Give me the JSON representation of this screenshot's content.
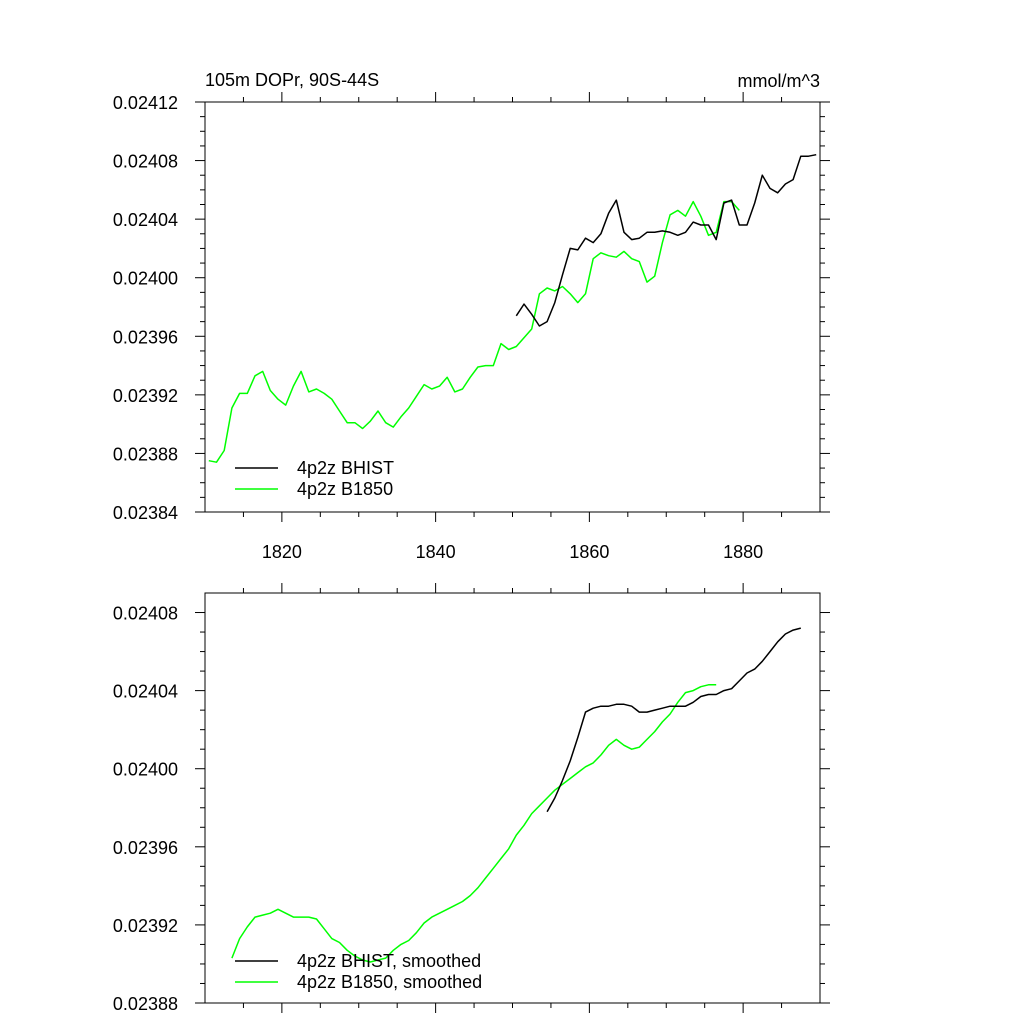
{
  "chart_data": [
    {
      "type": "line",
      "title_left": "105m DOPr, 90S-44S",
      "title_right": "mmol/m^3",
      "xlim": [
        1810,
        1890
      ],
      "ylim": [
        0.02384,
        0.02412
      ],
      "x_ticks": [
        1820,
        1840,
        1860,
        1880
      ],
      "x_tick_labels": [
        "1820",
        "1840",
        "1860",
        "1880"
      ],
      "y_ticks": [
        0.02384,
        0.02388,
        0.02392,
        0.02396,
        0.024,
        0.02404,
        0.02408,
        0.02412
      ],
      "y_tick_labels": [
        "0.02384",
        "0.02388",
        "0.02392",
        "0.02396",
        "0.02400",
        "0.02404",
        "0.02408",
        "0.02412"
      ],
      "legend": [
        "4p2z BHIST",
        "4p2z B1850"
      ],
      "series": [
        {
          "name": "4p2z BHIST",
          "color": "#000000",
          "x": [
            1850.5,
            1851.5,
            1852.5,
            1853.5,
            1854.5,
            1855.5,
            1856.5,
            1857.5,
            1858.5,
            1859.5,
            1860.5,
            1861.5,
            1862.5,
            1863.5,
            1864.5,
            1865.5,
            1866.5,
            1867.5,
            1868.5,
            1869.5,
            1870.5,
            1871.5,
            1872.5,
            1873.5,
            1874.5,
            1875.5,
            1876.5,
            1877.5,
            1878.5,
            1879.5,
            1880.5,
            1881.5,
            1882.5,
            1883.5,
            1884.5,
            1885.5,
            1886.5,
            1887.5,
            1888.5,
            1889.5
          ],
          "values": [
            0.023974,
            0.023982,
            0.023975,
            0.023967,
            0.02397,
            0.023983,
            0.024002,
            0.02402,
            0.024019,
            0.024027,
            0.024024,
            0.02403,
            0.024044,
            0.024053,
            0.024031,
            0.024026,
            0.024027,
            0.024031,
            0.024031,
            0.024032,
            0.024031,
            0.024029,
            0.024031,
            0.024038,
            0.024036,
            0.024036,
            0.024026,
            0.024051,
            0.024053,
            0.024036,
            0.024036,
            0.024051,
            0.02407,
            0.024061,
            0.024058,
            0.024064,
            0.024067,
            0.024083,
            0.024083,
            0.024084
          ]
        },
        {
          "name": "4p2z B1850",
          "color": "#00ff00",
          "x": [
            1810.5,
            1811.5,
            1812.5,
            1813.5,
            1814.5,
            1815.5,
            1816.5,
            1817.5,
            1818.5,
            1819.5,
            1820.5,
            1821.5,
            1822.5,
            1823.5,
            1824.5,
            1825.5,
            1826.5,
            1827.5,
            1828.5,
            1829.5,
            1830.5,
            1831.5,
            1832.5,
            1833.5,
            1834.5,
            1835.5,
            1836.5,
            1837.5,
            1838.5,
            1839.5,
            1840.5,
            1841.5,
            1842.5,
            1843.5,
            1844.5,
            1845.5,
            1846.5,
            1847.5,
            1848.5,
            1849.5,
            1850.5,
            1851.5,
            1852.5,
            1853.5,
            1854.5,
            1855.5,
            1856.5,
            1857.5,
            1858.5,
            1859.5,
            1860.5,
            1861.5,
            1862.5,
            1863.5,
            1864.5,
            1865.5,
            1866.5,
            1867.5,
            1868.5,
            1869.5,
            1870.5,
            1871.5,
            1872.5,
            1873.5,
            1874.5,
            1875.5,
            1876.5,
            1877.5,
            1878.5,
            1879.5
          ],
          "values": [
            0.023875,
            0.023874,
            0.023882,
            0.023911,
            0.023921,
            0.023921,
            0.023933,
            0.023936,
            0.023923,
            0.023917,
            0.023913,
            0.023926,
            0.023936,
            0.023922,
            0.023924,
            0.023921,
            0.023917,
            0.023909,
            0.023901,
            0.023901,
            0.023897,
            0.023902,
            0.023909,
            0.023901,
            0.023898,
            0.023905,
            0.023911,
            0.023919,
            0.023927,
            0.023924,
            0.023926,
            0.023932,
            0.023922,
            0.023924,
            0.023932,
            0.023939,
            0.02394,
            0.02394,
            0.023955,
            0.023951,
            0.023953,
            0.023959,
            0.023965,
            0.023989,
            0.023993,
            0.023991,
            0.023994,
            0.023989,
            0.023983,
            0.023989,
            0.024013,
            0.024017,
            0.024015,
            0.024014,
            0.024018,
            0.024013,
            0.024011,
            0.023997,
            0.024001,
            0.024024,
            0.024043,
            0.024046,
            0.024042,
            0.024052,
            0.024042,
            0.024029,
            0.024031,
            0.024052,
            0.024052,
            0.024046
          ]
        }
      ]
    },
    {
      "type": "line",
      "xlim": [
        1810,
        1890
      ],
      "ylim": [
        0.02388,
        0.02409
      ],
      "x_ticks": [
        1820,
        1840,
        1860,
        1880
      ],
      "y_ticks": [
        0.02388,
        0.02392,
        0.02396,
        0.024,
        0.02404,
        0.02408
      ],
      "y_tick_labels": [
        "0.02388",
        "0.02392",
        "0.02396",
        "0.02400",
        "0.02404",
        "0.02408"
      ],
      "legend": [
        "4p2z BHIST, smoothed",
        "4p2z B1850, smoothed"
      ],
      "series": [
        {
          "name": "4p2z BHIST, smoothed",
          "color": "#000000",
          "x": [
            1854.5,
            1855.5,
            1856.5,
            1857.5,
            1858.5,
            1859.5,
            1860.5,
            1861.5,
            1862.5,
            1863.5,
            1864.5,
            1865.5,
            1866.5,
            1867.5,
            1868.5,
            1869.5,
            1870.5,
            1871.5,
            1872.5,
            1873.5,
            1874.5,
            1875.5,
            1876.5,
            1877.5,
            1878.5,
            1879.5,
            1880.5,
            1881.5,
            1882.5,
            1883.5,
            1884.5,
            1885.5,
            1886.5,
            1887.5
          ],
          "values": [
            0.023978,
            0.023985,
            0.023994,
            0.024004,
            0.024016,
            0.024029,
            0.024031,
            0.024032,
            0.024032,
            0.024033,
            0.024033,
            0.024032,
            0.024029,
            0.024029,
            0.02403,
            0.024031,
            0.024032,
            0.024032,
            0.024032,
            0.024034,
            0.024037,
            0.024038,
            0.024038,
            0.02404,
            0.024041,
            0.024045,
            0.024049,
            0.024051,
            0.024055,
            0.02406,
            0.024065,
            0.024069,
            0.024071,
            0.024072
          ]
        },
        {
          "name": "4p2z B1850, smoothed",
          "color": "#00ff00",
          "x": [
            1813.5,
            1814.5,
            1815.5,
            1816.5,
            1817.5,
            1818.5,
            1819.5,
            1820.5,
            1821.5,
            1822.5,
            1823.5,
            1824.5,
            1825.5,
            1826.5,
            1827.5,
            1828.5,
            1829.5,
            1830.5,
            1831.5,
            1832.5,
            1833.5,
            1834.5,
            1835.5,
            1836.5,
            1837.5,
            1838.5,
            1839.5,
            1840.5,
            1841.5,
            1842.5,
            1843.5,
            1844.5,
            1845.5,
            1846.5,
            1847.5,
            1848.5,
            1849.5,
            1850.5,
            1851.5,
            1852.5,
            1853.5,
            1854.5,
            1855.5,
            1856.5,
            1857.5,
            1858.5,
            1859.5,
            1860.5,
            1861.5,
            1862.5,
            1863.5,
            1864.5,
            1865.5,
            1866.5,
            1867.5,
            1868.5,
            1869.5,
            1870.5,
            1871.5,
            1872.5,
            1873.5,
            1874.5,
            1875.5,
            1876.5
          ],
          "values": [
            0.023903,
            0.023913,
            0.023919,
            0.023924,
            0.023925,
            0.023926,
            0.023928,
            0.023926,
            0.023924,
            0.023924,
            0.023924,
            0.023923,
            0.023918,
            0.023913,
            0.023911,
            0.023907,
            0.023904,
            0.023902,
            0.023901,
            0.023902,
            0.023903,
            0.023907,
            0.02391,
            0.023912,
            0.023916,
            0.023921,
            0.023924,
            0.023926,
            0.023928,
            0.02393,
            0.023932,
            0.023935,
            0.023939,
            0.023944,
            0.023949,
            0.023954,
            0.023959,
            0.023966,
            0.023971,
            0.023977,
            0.023981,
            0.023985,
            0.023989,
            0.023992,
            0.023995,
            0.023998,
            0.024001,
            0.024003,
            0.024007,
            0.024012,
            0.024015,
            0.024012,
            0.02401,
            0.024011,
            0.024015,
            0.024019,
            0.024024,
            0.024028,
            0.024034,
            0.024039,
            0.02404,
            0.024042,
            0.024043,
            0.024043
          ]
        }
      ]
    }
  ]
}
